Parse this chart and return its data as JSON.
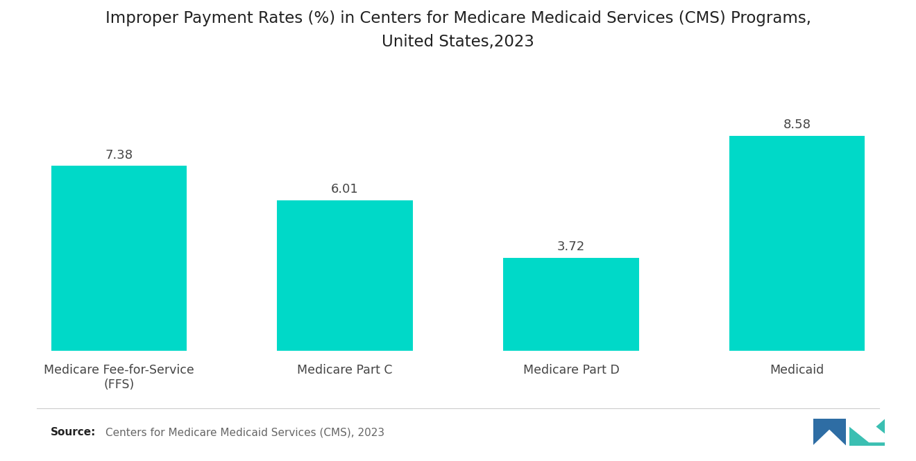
{
  "title": "Improper Payment Rates (%) in Centers for Medicare Medicaid Services (CMS) Programs,\nUnited States,2023",
  "categories": [
    "Medicare Fee-for-Service\n(FFS)",
    "Medicare Part C",
    "Medicare Part D",
    "Medicaid"
  ],
  "values": [
    7.38,
    6.01,
    3.72,
    8.58
  ],
  "bar_color": "#00D9C8",
  "value_labels": [
    "7.38",
    "6.01",
    "3.72",
    "8.58"
  ],
  "source_text": "Centers for Medicare Medicaid Services (CMS), 2023",
  "source_label": "Source:",
  "background_color": "#ffffff",
  "title_fontsize": 16.5,
  "label_fontsize": 12.5,
  "value_fontsize": 13,
  "source_fontsize": 11,
  "ylim": [
    0,
    11
  ],
  "bar_width": 0.6
}
